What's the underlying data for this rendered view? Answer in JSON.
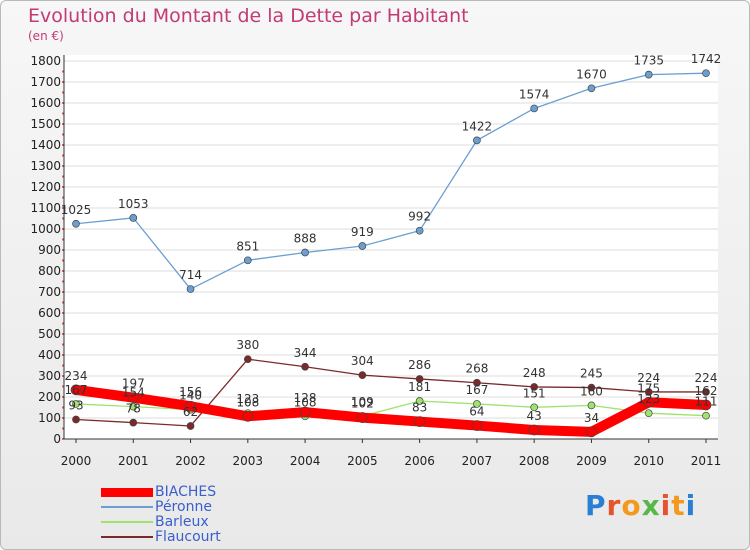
{
  "title": "Evolution du Montant de la Dette par Habitant",
  "subtitle": "(en €)",
  "logo": {
    "text": "Proxiti",
    "colors": [
      "#2a7fd4",
      "#e6522c",
      "#f39a1e",
      "#56b847",
      "#e6522c",
      "#f39a1e",
      "#2a7fd4"
    ]
  },
  "chart_data": {
    "type": "line",
    "categories": [
      "2000",
      "2001",
      "2002",
      "2003",
      "2004",
      "2005",
      "2006",
      "2007",
      "2008",
      "2009",
      "2010",
      "2011"
    ],
    "ylim": [
      0,
      1800
    ],
    "yticks": [
      0,
      100,
      200,
      300,
      400,
      500,
      600,
      700,
      800,
      900,
      1000,
      1100,
      1200,
      1300,
      1400,
      1500,
      1600,
      1700,
      1800
    ],
    "series": [
      {
        "name": "BIACHES",
        "color": "#ff0000",
        "values": [
          234,
          197,
          156,
          108,
          128,
          102,
          83,
          64,
          43,
          34,
          175,
          162
        ]
      },
      {
        "name": "Péronne",
        "color": "#6b9fd1",
        "values": [
          1025,
          1053,
          714,
          851,
          888,
          919,
          992,
          1422,
          1574,
          1670,
          1735,
          1742
        ]
      },
      {
        "name": "Barleux",
        "color": "#9de36e",
        "values": [
          167,
          154,
          140,
          123,
          108,
          109,
          181,
          167,
          151,
          160,
          123,
          111
        ]
      },
      {
        "name": "Flaucourt",
        "color": "#7a2a2a",
        "values": [
          93,
          78,
          62,
          380,
          344,
          304,
          286,
          268,
          248,
          245,
          224,
          224
        ]
      }
    ]
  }
}
